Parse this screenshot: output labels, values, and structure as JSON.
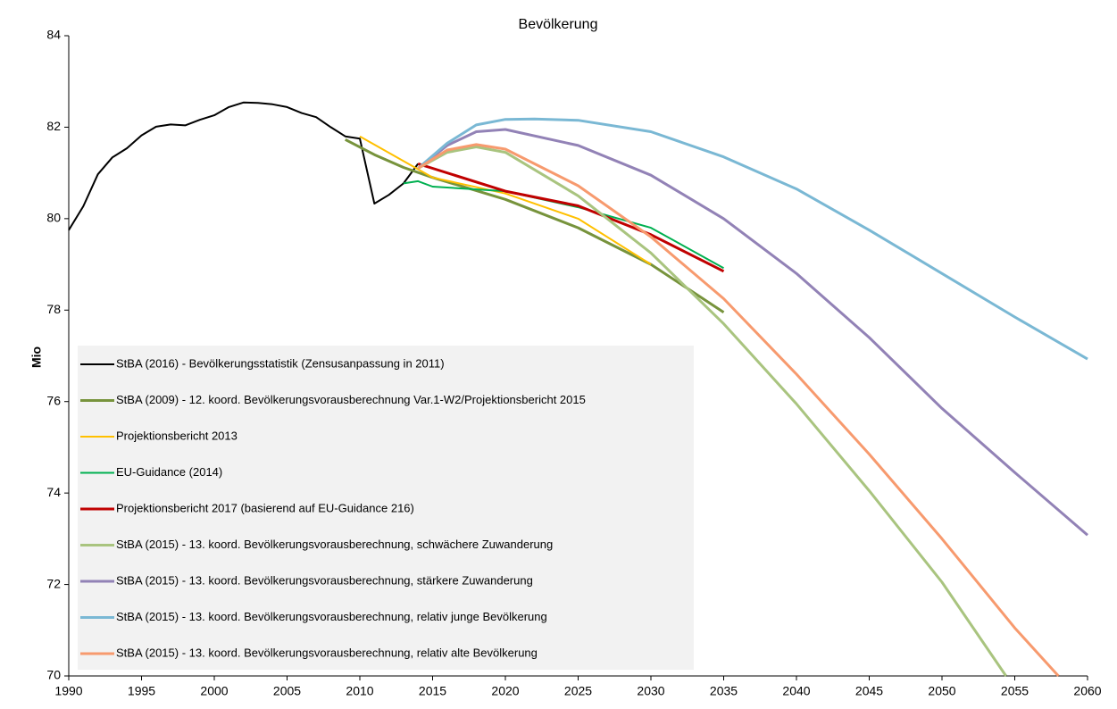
{
  "chart_data": {
    "type": "line",
    "title": "Bevölkerung",
    "ylabel": "Mio",
    "xlim": [
      1990,
      2060
    ],
    "xticks": [
      1990,
      1995,
      2000,
      2005,
      2010,
      2015,
      2020,
      2025,
      2030,
      2035,
      2040,
      2045,
      2050,
      2055,
      2060
    ],
    "ylim": [
      70,
      84
    ],
    "yticks": [
      70,
      72,
      74,
      76,
      78,
      80,
      82,
      84
    ],
    "grid": false,
    "legend": "lower left",
    "series": [
      {
        "name": "StBA (2016) - Bevölkerungsstatistik (Zensusanpassung in 2011)",
        "color": "#000000",
        "x": [
          1990,
          1991,
          1992,
          1993,
          1994,
          1995,
          1996,
          1997,
          1998,
          1999,
          2000,
          2001,
          2002,
          2003,
          2004,
          2005,
          2006,
          2007,
          2008,
          2009,
          2010,
          2011,
          2012,
          2013,
          2014
        ],
        "values": [
          79.75,
          80.27,
          80.97,
          81.34,
          81.54,
          81.82,
          82.01,
          82.06,
          82.04,
          82.16,
          82.26,
          82.44,
          82.54,
          82.53,
          82.5,
          82.44,
          82.31,
          82.22,
          82.0,
          81.8,
          81.75,
          80.33,
          80.52,
          80.77,
          81.2
        ]
      },
      {
        "name": "StBA (2009) - 12. koord. Bevölkerungsvorausberechnung Var.1-W2/Projektionsbericht 2015",
        "color": "#77933c",
        "x": [
          2009,
          2011,
          2013,
          2015,
          2020,
          2025,
          2030,
          2035
        ],
        "values": [
          81.73,
          81.4,
          81.12,
          80.9,
          80.42,
          79.8,
          79.0,
          77.95
        ]
      },
      {
        "name": "Projektionsbericht 2013",
        "color": "#ffc000",
        "x": [
          2010,
          2015,
          2020,
          2025,
          2030
        ],
        "values": [
          81.8,
          80.9,
          80.55,
          80.0,
          79.0
        ]
      },
      {
        "name": "EU-Guidance (2014)",
        "color": "#00b050",
        "x": [
          2013,
          2014,
          2015,
          2020,
          2025,
          2030,
          2035
        ],
        "values": [
          80.77,
          80.82,
          80.7,
          80.6,
          80.25,
          79.8,
          78.92
        ]
      },
      {
        "name": "Projektionsbericht 2017 (basierend auf EU-Guidance 216)",
        "color": "#c00000",
        "x": [
          2014,
          2015,
          2020,
          2025,
          2030,
          2035
        ],
        "values": [
          81.2,
          81.1,
          80.6,
          80.28,
          79.65,
          78.85
        ]
      },
      {
        "name": "StBA (2015) - 13. koord. Bevölkerungsvorausberechnung, schwächere Zuwanderung",
        "color": "#a9c47f",
        "x": [
          2014,
          2016,
          2018,
          2020,
          2025,
          2030,
          2035,
          2040,
          2045,
          2050,
          2054.4
        ],
        "values": [
          81.1,
          81.45,
          81.57,
          81.45,
          80.5,
          79.25,
          77.7,
          75.95,
          74.05,
          72.05,
          70.0
        ]
      },
      {
        "name": "StBA (2015) - 13. koord. Bevölkerungsvorausberechnung, stärkere Zuwanderung",
        "color": "#9282b6",
        "x": [
          2014,
          2016,
          2018,
          2020,
          2025,
          2030,
          2035,
          2040,
          2045,
          2050,
          2055,
          2060
        ],
        "values": [
          81.1,
          81.6,
          81.9,
          81.95,
          81.6,
          80.95,
          80.0,
          78.8,
          77.4,
          75.85,
          74.45,
          73.08
        ]
      },
      {
        "name": "StBA (2015) - 13. koord. Bevölkerungsvorausberechnung, relativ junge Bevölkerung",
        "color": "#7ab8d4",
        "x": [
          2014,
          2016,
          2018,
          2020,
          2022,
          2025,
          2030,
          2035,
          2040,
          2045,
          2050,
          2055,
          2060
        ],
        "values": [
          81.1,
          81.65,
          82.05,
          82.17,
          82.18,
          82.15,
          81.9,
          81.35,
          80.65,
          79.75,
          78.8,
          77.85,
          76.93
        ]
      },
      {
        "name": "StBA (2015) - 13. koord. Bevölkerungsvorausberechnung, relativ alte Bevölkerung",
        "color": "#f79a6e",
        "x": [
          2014,
          2016,
          2018,
          2020,
          2025,
          2030,
          2035,
          2040,
          2045,
          2050,
          2055,
          2058
        ],
        "values": [
          81.1,
          81.5,
          81.62,
          81.52,
          80.72,
          79.6,
          78.25,
          76.6,
          74.85,
          73.0,
          71.05,
          70.0
        ]
      }
    ]
  }
}
